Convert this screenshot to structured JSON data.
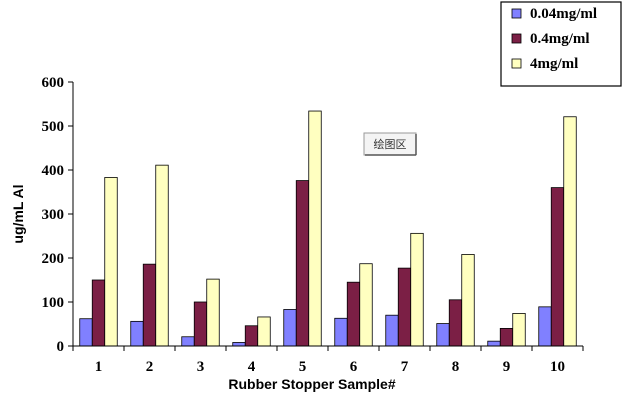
{
  "chart_data": {
    "type": "bar",
    "categories": [
      "1",
      "2",
      "3",
      "4",
      "5",
      "6",
      "7",
      "8",
      "9",
      "10"
    ],
    "series": [
      {
        "name": "0.04mg/ml",
        "color": "#8080ff",
        "values": [
          62,
          56,
          21,
          8,
          83,
          63,
          70,
          51,
          11,
          89
        ]
      },
      {
        "name": "0.4mg/ml",
        "color": "#7b1f45",
        "values": [
          150,
          186,
          100,
          46,
          376,
          145,
          177,
          105,
          40,
          360
        ]
      },
      {
        "name": "4mg/ml",
        "color": "#ffffc0",
        "values": [
          383,
          411,
          152,
          66,
          534,
          187,
          256,
          208,
          74,
          521
        ]
      }
    ],
    "title": "",
    "xlabel": "Rubber Stopper Sample#",
    "ylabel": "ug/mL Al",
    "ylim": [
      0,
      600
    ],
    "yticks": [
      0,
      100,
      200,
      300,
      400,
      500,
      600
    ],
    "grid": false,
    "legend_position": "top-right",
    "annotation": "绘图区"
  }
}
